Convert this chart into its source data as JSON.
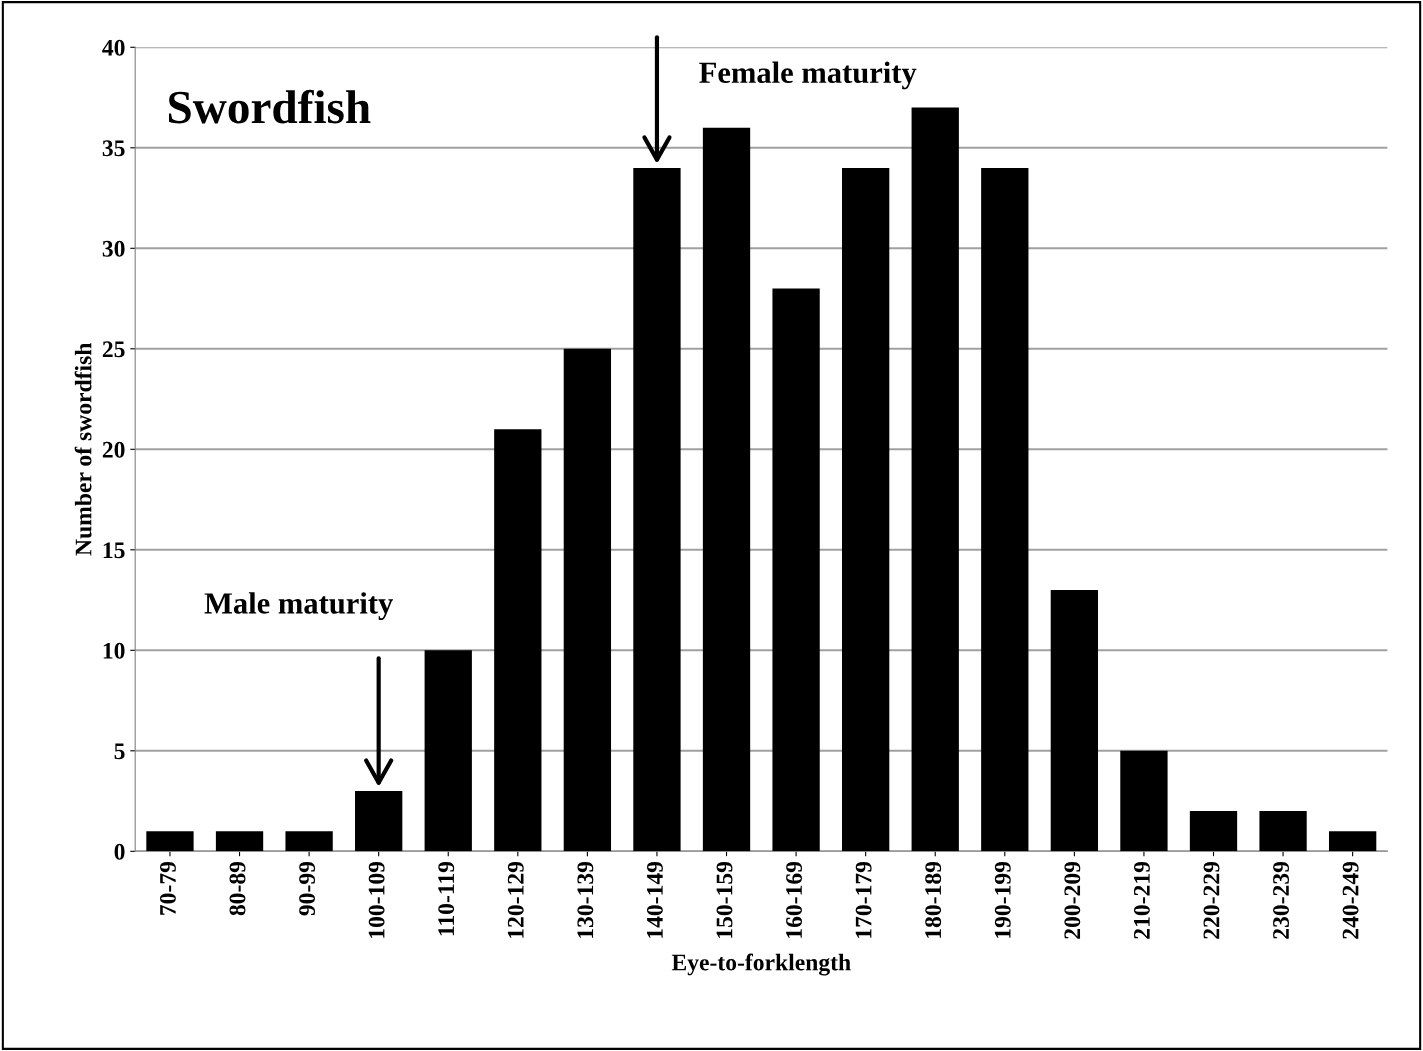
{
  "chart_data": {
    "type": "bar",
    "title": "Swordfish",
    "xlabel": "Eye-to-forklength",
    "ylabel": "Number of swordfish",
    "categories": [
      "70-79",
      "80-89",
      "90-99",
      "100-109",
      "110-119",
      "120-129",
      "130-139",
      "140-149",
      "150-159",
      "160-169",
      "170-179",
      "180-189",
      "190-199",
      "200-209",
      "210-219",
      "220-229",
      "230-239",
      "240-249"
    ],
    "values": [
      1,
      1,
      1,
      3,
      10,
      21,
      25,
      34,
      36,
      28,
      34,
      37,
      34,
      13,
      5,
      2,
      2,
      1
    ],
    "color": "#000000",
    "ylim": [
      0,
      40
    ],
    "yticks": [
      0,
      5,
      10,
      15,
      20,
      25,
      30,
      35,
      40
    ],
    "grid": "y",
    "annotations": [
      "Male maturity",
      "Female maturity"
    ]
  }
}
